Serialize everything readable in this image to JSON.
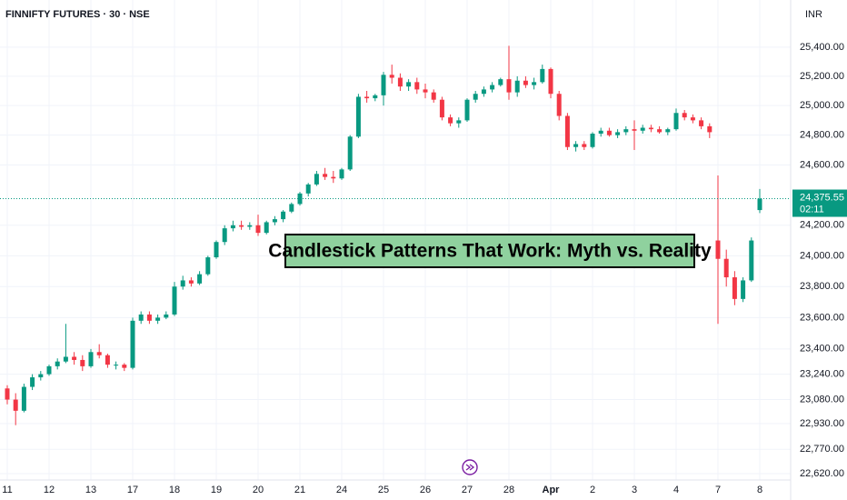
{
  "chart_data": {
    "type": "candlestick",
    "title": "FINNIFTY FUTURES · 30 · NSE",
    "currency": "INR",
    "annotation": "Candlestick Patterns That Work: Myth vs. Reality",
    "log_scale": true,
    "grid": true,
    "up_color": "#089981",
    "down_color": "#f23645",
    "ylim": [
      22581,
      25728
    ],
    "yticks": [
      {
        "value": 22620,
        "label": "22,620.00"
      },
      {
        "value": 22770,
        "label": "22,770.00"
      },
      {
        "value": 22930,
        "label": "22,930.00"
      },
      {
        "value": 23080,
        "label": "23,080.00"
      },
      {
        "value": 23240,
        "label": "23,240.00"
      },
      {
        "value": 23400,
        "label": "23,400.00"
      },
      {
        "value": 23600,
        "label": "23,600.00"
      },
      {
        "value": 23800,
        "label": "23,800.00"
      },
      {
        "value": 24000,
        "label": "24,000.00"
      },
      {
        "value": 24200,
        "label": "24,200.00"
      },
      {
        "value": 24600,
        "label": "24,600.00"
      },
      {
        "value": 24800,
        "label": "24,800.00"
      },
      {
        "value": 25000,
        "label": "25,000.00"
      },
      {
        "value": 25200,
        "label": "25,200.00"
      },
      {
        "value": 25400,
        "label": "25,400.00"
      }
    ],
    "last_price": {
      "value": 24375.55,
      "label": "24,375.55"
    },
    "countdown": "02:11",
    "x": [
      "11",
      null,
      null,
      null,
      null,
      "12",
      null,
      null,
      null,
      null,
      "13",
      null,
      null,
      null,
      null,
      "17",
      null,
      null,
      null,
      null,
      "18",
      null,
      null,
      null,
      null,
      "19",
      null,
      null,
      null,
      null,
      "20",
      null,
      null,
      null,
      null,
      "21",
      null,
      null,
      null,
      null,
      "24",
      null,
      null,
      null,
      null,
      "25",
      null,
      null,
      null,
      null,
      "26",
      null,
      null,
      null,
      null,
      "27",
      null,
      null,
      null,
      null,
      "28",
      null,
      null,
      null,
      null,
      "Apr",
      null,
      null,
      null,
      null,
      "2",
      null,
      null,
      null,
      null,
      "3",
      null,
      null,
      null,
      null,
      "4",
      null,
      null,
      null,
      null,
      "7",
      null,
      null,
      null,
      null,
      "8"
    ],
    "open": [
      23150,
      23080,
      23010,
      23160,
      23220,
      23240,
      23290,
      23320,
      23350,
      23330,
      23290,
      23380,
      23360,
      23300,
      23300,
      23280,
      23580,
      23620,
      23580,
      23600,
      23620,
      23800,
      23840,
      23820,
      23880,
      23990,
      24090,
      24180,
      24200,
      24190,
      24200,
      24150,
      24220,
      24240,
      24290,
      24340,
      24410,
      24470,
      24540,
      24520,
      24510,
      24570,
      24790,
      25060,
      25050,
      25070,
      25210,
      25190,
      25130,
      25160,
      25110,
      25090,
      25040,
      24920,
      24880,
      24900,
      25040,
      25080,
      25110,
      25140,
      25180,
      25090,
      25170,
      25140,
      25160,
      25250,
      25080,
      24930,
      24720,
      24740,
      24720,
      24810,
      24830,
      24800,
      24820,
      24840,
      24830,
      24850,
      24840,
      24820,
      24840,
      24950,
      24920,
      24900,
      24860,
      24100,
      23980,
      23860,
      23720,
      23840,
      24300
    ],
    "high": [
      23170,
      23120,
      23180,
      23240,
      23260,
      23300,
      23340,
      23560,
      23380,
      23360,
      23400,
      23430,
      23370,
      23320,
      23310,
      23600,
      23640,
      23640,
      23620,
      23640,
      23830,
      23870,
      23860,
      23900,
      24000,
      24100,
      24200,
      24230,
      24230,
      24220,
      24270,
      24230,
      24260,
      24300,
      24350,
      24420,
      24480,
      24560,
      24580,
      24560,
      24580,
      24800,
      25080,
      25100,
      25080,
      25230,
      25280,
      25220,
      25180,
      25190,
      25150,
      25110,
      25060,
      24940,
      24920,
      25050,
      25100,
      25130,
      25160,
      25190,
      25410,
      25200,
      25200,
      25190,
      25280,
      25260,
      25100,
      24950,
      24760,
      24760,
      24820,
      24850,
      24850,
      24840,
      24860,
      24900,
      24870,
      24870,
      24860,
      24850,
      24980,
      24970,
      24940,
      24920,
      24880,
      24530,
      24040,
      23900,
      23860,
      24120,
      24440
    ],
    "low": [
      23050,
      22920,
      23000,
      23140,
      23200,
      23230,
      23270,
      23310,
      23300,
      23260,
      23280,
      23340,
      23280,
      23270,
      23260,
      23270,
      23560,
      23560,
      23560,
      23590,
      23610,
      23780,
      23800,
      23810,
      23870,
      23980,
      24070,
      24160,
      24170,
      24170,
      24130,
      24140,
      24200,
      24220,
      24280,
      24330,
      24390,
      24460,
      24500,
      24480,
      24500,
      24560,
      24780,
      25020,
      25030,
      25000,
      25150,
      25100,
      25100,
      25080,
      25050,
      25020,
      24900,
      24860,
      24850,
      24890,
      25020,
      25060,
      25090,
      25130,
      25040,
      25060,
      25120,
      25110,
      25150,
      25050,
      24900,
      24700,
      24690,
      24700,
      24710,
      24790,
      24790,
      24780,
      24800,
      24700,
      24810,
      24820,
      24810,
      24800,
      24830,
      24900,
      24880,
      24840,
      24780,
      23560,
      23800,
      23680,
      23700,
      23830,
      24280
    ],
    "close": [
      23080,
      23010,
      23160,
      23220,
      23240,
      23290,
      23320,
      23350,
      23330,
      23290,
      23380,
      23360,
      23300,
      23300,
      23280,
      23580,
      23620,
      23580,
      23600,
      23620,
      23800,
      23840,
      23820,
      23880,
      23990,
      24090,
      24180,
      24200,
      24190,
      24200,
      24150,
      24220,
      24240,
      24290,
      24340,
      24410,
      24470,
      24540,
      24520,
      24510,
      24570,
      24790,
      25060,
      25050,
      25070,
      25210,
      25190,
      25130,
      25160,
      25110,
      25090,
      25040,
      24920,
      24880,
      24900,
      25040,
      25080,
      25110,
      25140,
      25180,
      25090,
      25170,
      25140,
      25160,
      25250,
      25080,
      24930,
      24720,
      24740,
      24720,
      24810,
      24830,
      24800,
      24820,
      24840,
      24830,
      24850,
      24840,
      24820,
      24840,
      24950,
      24920,
      24900,
      24860,
      24820,
      23980,
      23860,
      23720,
      23840,
      24100,
      24375.55
    ]
  }
}
